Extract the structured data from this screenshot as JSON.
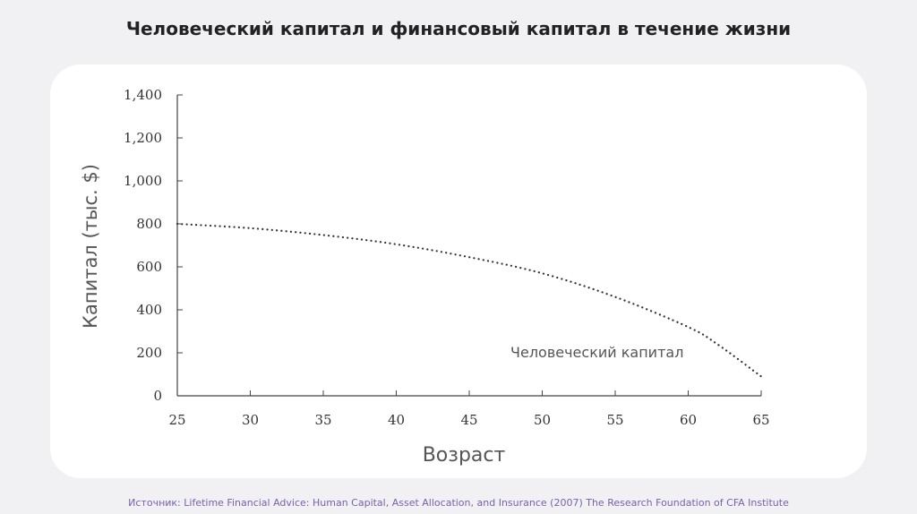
{
  "title": "Человеческий капитал и финансовый капитал в течение жизни",
  "source": "Источник: Lifetime Financial Advice: Human Capital, Asset Allocation, and Insurance (2007) The Research Foundation of CFA Institute",
  "chart_data": {
    "type": "line",
    "xlabel": "Возраст",
    "ylabel": "Капитал (тыс. $)",
    "xlim": [
      25,
      65
    ],
    "ylim": [
      0,
      1400
    ],
    "x_ticks": [
      25,
      30,
      35,
      40,
      45,
      50,
      55,
      60,
      65
    ],
    "y_ticks": [
      0,
      200,
      400,
      600,
      800,
      1000,
      1200,
      1400
    ],
    "y_tick_labels": [
      "0",
      "200",
      "400",
      "600",
      "800",
      "1,000",
      "1,200",
      "1,400"
    ],
    "grid": false,
    "series": [
      {
        "name": "Человеческий капитал",
        "style": "dotted",
        "color": "#333333",
        "x": [
          25,
          30,
          35,
          40,
          45,
          50,
          55,
          60,
          62,
          65
        ],
        "y": [
          800,
          780,
          748,
          705,
          645,
          570,
          460,
          320,
          240,
          90
        ]
      }
    ]
  }
}
